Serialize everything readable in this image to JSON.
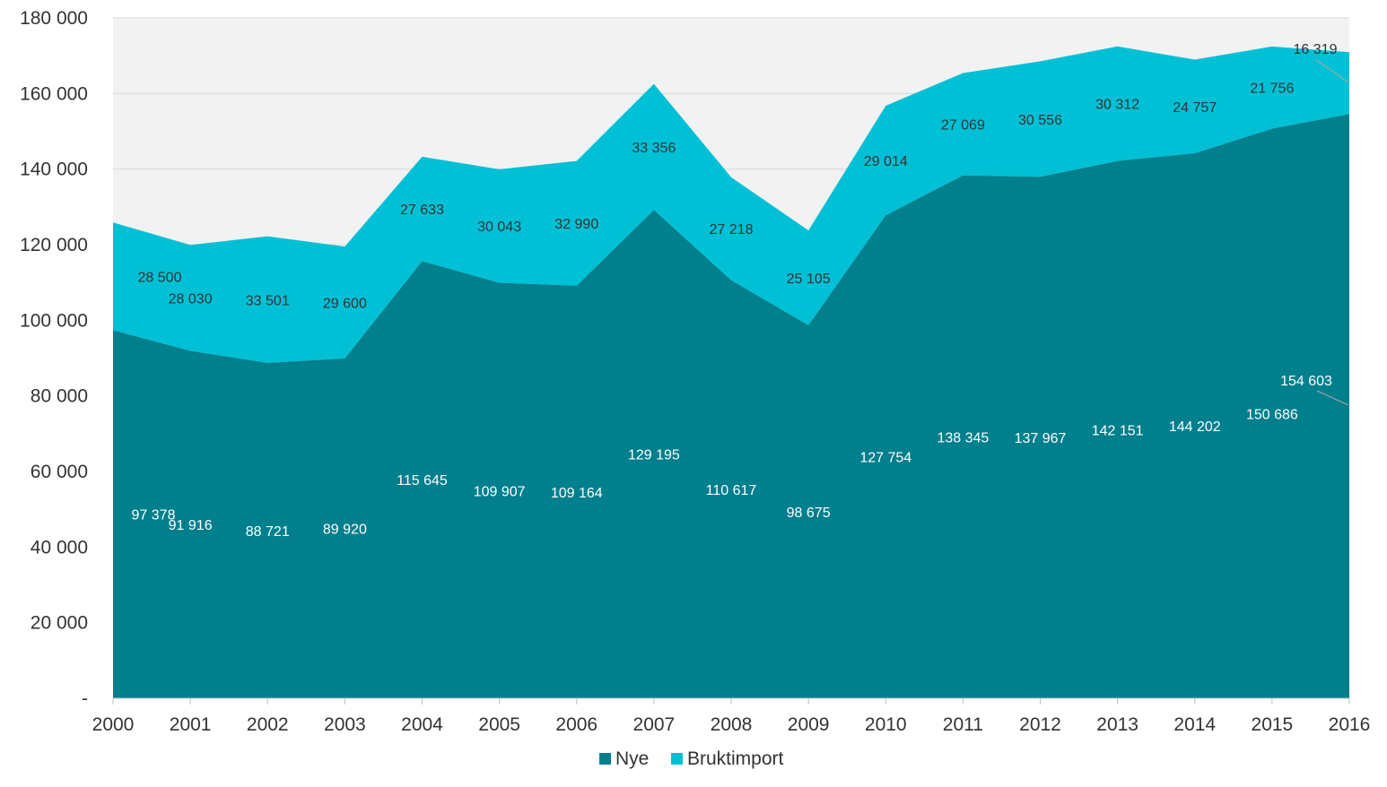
{
  "chart_data": {
    "type": "area",
    "stacked": true,
    "title": "",
    "xlabel": "",
    "ylabel": "",
    "x": [
      "2000",
      "2001",
      "2002",
      "2003",
      "2004",
      "2005",
      "2006",
      "2007",
      "2008",
      "2009",
      "2010",
      "2011",
      "2012",
      "2013",
      "2014",
      "2015",
      "2016"
    ],
    "ylim": [
      0,
      180000
    ],
    "yticks": [
      0,
      20000,
      40000,
      60000,
      80000,
      100000,
      120000,
      140000,
      160000,
      180000
    ],
    "ytick_labels": [
      "-",
      "20 000",
      "40 000",
      "60 000",
      "80 000",
      "100 000",
      "120 000",
      "140 000",
      "160 000",
      "180 000"
    ],
    "grid": true,
    "legend_position": "bottom",
    "series": [
      {
        "name": "Nye",
        "color": "#007f8c",
        "values": [
          97378,
          91916,
          88721,
          89920,
          115645,
          109907,
          109164,
          129195,
          110617,
          98675,
          127754,
          138345,
          137967,
          142151,
          144202,
          150686,
          154603
        ],
        "labels": [
          "97 378",
          "91 916",
          "88 721",
          "89 920",
          "115 645",
          "109 907",
          "109 164",
          "129 195",
          "110 617",
          "98 675",
          "127 754",
          "138 345",
          "137 967",
          "142 151",
          "144 202",
          "150 686",
          "154 603"
        ]
      },
      {
        "name": "Bruktimport",
        "color": "#00c0d6",
        "values": [
          28500,
          28030,
          33501,
          29600,
          27633,
          30043,
          32990,
          33356,
          27218,
          25105,
          29014,
          27069,
          30556,
          30312,
          24757,
          21756,
          16319
        ],
        "labels": [
          "28 500",
          "28 030",
          "33 501",
          "29 600",
          "27 633",
          "30 043",
          "32 990",
          "33 356",
          "27 218",
          "25 105",
          "29 014",
          "27 069",
          "30 556",
          "30 312",
          "24 757",
          "21 756",
          "16 319"
        ]
      }
    ],
    "colors": {
      "plot_background": "#f2f2f2",
      "gridline": "#d9d9d9",
      "axis": "#bfbfbf",
      "text": "#333333",
      "leader_line": "#a6a6a6"
    }
  }
}
